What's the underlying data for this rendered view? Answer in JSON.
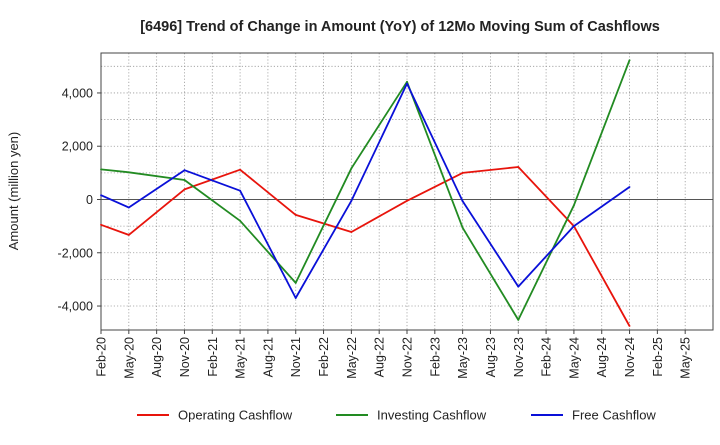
{
  "chart_data": {
    "type": "line",
    "title": "[6496]  Trend of Change in Amount (YoY) of 12Mo Moving Sum of Cashflows",
    "xlabel": "",
    "ylabel": "Amount (million yen)",
    "ylim": [
      -4900,
      5500
    ],
    "yticks": [
      -4000,
      -2000,
      0,
      2000,
      4000
    ],
    "ytick_labels": [
      "-4,000",
      "-2,000",
      "0",
      "2,000",
      "4,000"
    ],
    "categories": [
      "Feb-20",
      "May-20",
      "Aug-20",
      "Nov-20",
      "Feb-21",
      "May-21",
      "Aug-21",
      "Nov-21",
      "Feb-22",
      "May-22",
      "Aug-22",
      "Nov-22",
      "Feb-23",
      "May-23",
      "Aug-23",
      "Nov-23",
      "Feb-24",
      "May-24",
      "Aug-24",
      "Nov-24",
      "Feb-25",
      "May-25"
    ],
    "grid": true,
    "legend_position": "bottom",
    "series": [
      {
        "name": "Operating Cashflow",
        "color": "#e8140c",
        "values": [
          -950,
          -1330,
          null,
          380,
          null,
          1120,
          null,
          -580,
          null,
          -1220,
          null,
          -50,
          null,
          1000,
          null,
          1220,
          null,
          -1000,
          null,
          -4750,
          null,
          null
        ]
      },
      {
        "name": "Investing Cashflow",
        "color": "#228b22",
        "values": [
          1130,
          1020,
          null,
          730,
          null,
          -800,
          null,
          -3130,
          null,
          1170,
          null,
          4420,
          null,
          -1060,
          null,
          -4520,
          null,
          -220,
          null,
          5230,
          null,
          null
        ]
      },
      {
        "name": "Free Cashflow",
        "color": "#0a10d8",
        "values": [
          160,
          -300,
          null,
          1100,
          null,
          330,
          null,
          -3700,
          null,
          -50,
          null,
          4350,
          null,
          -60,
          null,
          -3270,
          null,
          -1000,
          null,
          470,
          null,
          null
        ]
      }
    ]
  }
}
